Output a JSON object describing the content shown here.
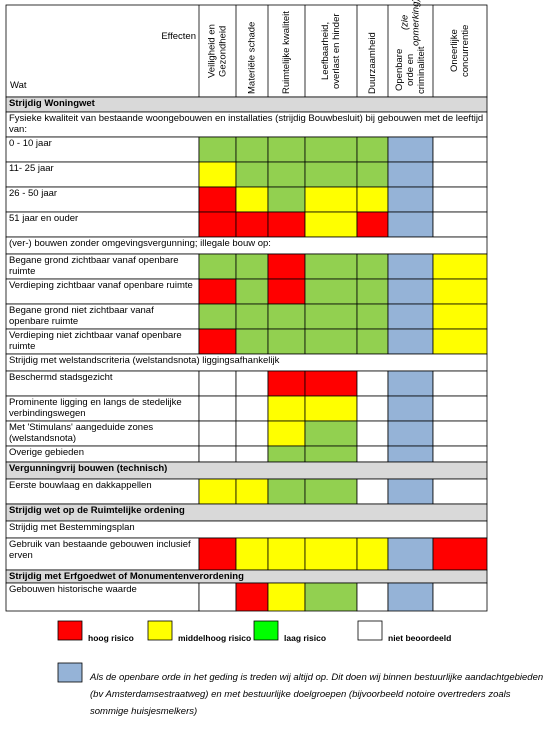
{
  "colors": {
    "red": "#ff0000",
    "yellow": "#ffff00",
    "green": "#92d050",
    "blue": "#95b3d7",
    "white": "#ffffff",
    "section": "#d9d9d9",
    "legend_green": "#00ff00"
  },
  "header": {
    "effecten": "Effecten",
    "wat": "Wat",
    "columns": [
      "Veiligheid en Gezondheid",
      "Materiële schade",
      "Ruimtelijke kwaliteit",
      "Leefbaarheid, overlast en hinder",
      "Duurzaamheid",
      "Openbare orde en criminaliteit",
      "Oneerlijke concurrentie"
    ],
    "col6_note": "(zie opmerking)"
  },
  "rows": [
    {
      "type": "section",
      "label": "Strijdig Woningwet"
    },
    {
      "type": "text",
      "label": "Fysieke kwaliteit van bestaande woongebouwen en installaties (strijdig Bouwbesluit) bij gebouwen met de leeftijd van:"
    },
    {
      "type": "data",
      "label": "0 - 10 jaar",
      "cells": [
        "green",
        "green",
        "green",
        "green",
        "green",
        "blue",
        "white"
      ]
    },
    {
      "type": "data",
      "label": "11- 25 jaar",
      "cells": [
        "yellow",
        "green",
        "green",
        "green",
        "green",
        "blue",
        "white"
      ]
    },
    {
      "type": "data",
      "label": "26 - 50 jaar",
      "cells": [
        "red",
        "yellow",
        "green",
        "yellow",
        "yellow",
        "blue",
        "white"
      ]
    },
    {
      "type": "data",
      "label": "51 jaar en ouder",
      "cells": [
        "red",
        "red",
        "red",
        "yellow",
        "red",
        "blue",
        "white"
      ]
    },
    {
      "type": "text",
      "label": "(ver-) bouwen zonder omgevingsvergunning; illegale bouw op:"
    },
    {
      "type": "data",
      "label": "Begane grond zichtbaar vanaf openbare ruimte",
      "cells": [
        "green",
        "green",
        "red",
        "green",
        "green",
        "blue",
        "yellow"
      ]
    },
    {
      "type": "data",
      "label": "Verdieping zichtbaar vanaf openbare ruimte",
      "cells": [
        "red",
        "green",
        "red",
        "green",
        "green",
        "blue",
        "yellow"
      ]
    },
    {
      "type": "data",
      "label": "Begane grond niet zichtbaar vanaf openbare ruimte",
      "cells": [
        "green",
        "green",
        "green",
        "green",
        "green",
        "blue",
        "yellow"
      ]
    },
    {
      "type": "data",
      "label": "Verdieping niet zichtbaar vanaf openbare ruimte",
      "cells": [
        "red",
        "green",
        "green",
        "green",
        "green",
        "blue",
        "yellow"
      ]
    },
    {
      "type": "text",
      "label": "Strijdig met welstandscriteria (welstandsnota) liggingsafhankelijk"
    },
    {
      "type": "data",
      "label": "Beschermd stadsgezicht",
      "cells": [
        "white",
        "white",
        "red",
        "red",
        "white",
        "blue",
        "white"
      ]
    },
    {
      "type": "data",
      "label": "Prominente ligging en langs de stedelijke verbindingswegen",
      "cells": [
        "white",
        "white",
        "yellow",
        "yellow",
        "white",
        "blue",
        "white"
      ]
    },
    {
      "type": "data",
      "label": "Met 'Stimulans' aangeduide zones (welstandsnota)",
      "cells": [
        "white",
        "white",
        "yellow",
        "green",
        "white",
        "blue",
        "white"
      ]
    },
    {
      "type": "data",
      "label": "Overige gebieden",
      "cells": [
        "white",
        "white",
        "green",
        "green",
        "white",
        "blue",
        "white"
      ]
    },
    {
      "type": "section",
      "label": "Vergunningvrij bouwen (technisch)"
    },
    {
      "type": "data",
      "label": "Eerste bouwlaag en dakkappellen",
      "cells": [
        "yellow",
        "yellow",
        "green",
        "green",
        "white",
        "blue",
        "white"
      ]
    },
    {
      "type": "section",
      "label": "Strijdig wet op de Ruimtelijke ordening"
    },
    {
      "type": "text",
      "label": "Strijdig met Bestemmingsplan"
    },
    {
      "type": "data",
      "label": "Gebruik van bestaande gebouwen inclusief erven",
      "cells": [
        "red",
        "yellow",
        "yellow",
        "yellow",
        "yellow",
        "blue",
        "red"
      ]
    },
    {
      "type": "section",
      "label": "Strijdig met Erfgoedwet of Monumentenverordening"
    },
    {
      "type": "data",
      "label": "Gebouwen historische waarde",
      "cells": [
        "white",
        "red",
        "yellow",
        "green",
        "white",
        "blue",
        "white"
      ]
    }
  ],
  "legend": {
    "items": [
      {
        "label": "hoog risico",
        "color": "red"
      },
      {
        "label": "middelhoog risico",
        "color": "yellow"
      },
      {
        "label": "laag risico",
        "color": "legend_green"
      },
      {
        "label": "niet beoordeeld",
        "color": "white"
      }
    ],
    "note": "Als de openbare orde in het geding is treden wij altijd op. Dit doen wij binnen bestuurlijke aandachtgebieden (bv Amsterdamsestraatweg) en met bestuurlijke doelgroepen (bijvoorbeeld notoire overtreders zoals sommige huisjesmelkers)"
  }
}
